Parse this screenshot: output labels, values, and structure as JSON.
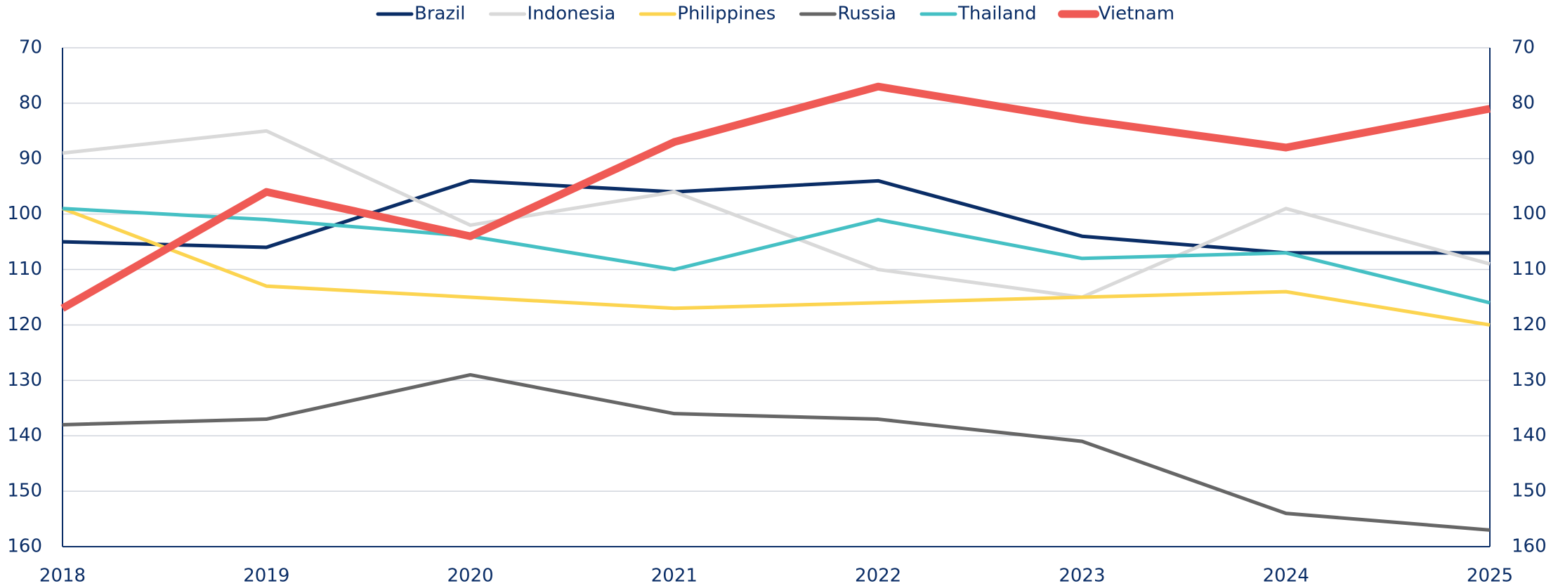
{
  "chart_data": {
    "type": "line",
    "categories": [
      "2018",
      "2019",
      "2020",
      "2021",
      "2022",
      "2023",
      "2024",
      "2025"
    ],
    "series": [
      {
        "name": "Brazil",
        "color": "#0a2d66",
        "values": [
          105,
          106,
          94,
          96,
          94,
          104,
          107,
          107
        ]
      },
      {
        "name": "Indonesia",
        "color": "#d9d9d9",
        "values": [
          89,
          85,
          102,
          96,
          110,
          115,
          99,
          109
        ]
      },
      {
        "name": "Philippines",
        "color": "#fcd450",
        "values": [
          99,
          113,
          115,
          117,
          116,
          115,
          114,
          120
        ]
      },
      {
        "name": "Russia",
        "color": "#666666",
        "values": [
          138,
          137,
          129,
          136,
          137,
          141,
          154,
          157
        ]
      },
      {
        "name": "Thailand",
        "color": "#45c0c4",
        "values": [
          99,
          101,
          104,
          110,
          101,
          108,
          107,
          116
        ]
      },
      {
        "name": "Vietnam",
        "color": "#ef5a55",
        "values": [
          117,
          96,
          104,
          87,
          77,
          83,
          88,
          81
        ]
      }
    ],
    "ylim": [
      70,
      160
    ],
    "yticks": [
      70,
      80,
      90,
      100,
      110,
      120,
      130,
      140,
      150,
      160
    ],
    "y2lim": [
      70,
      160
    ],
    "y2ticks": [
      70,
      80,
      90,
      100,
      110,
      120,
      130,
      140,
      150,
      160
    ],
    "y_inverted": true,
    "grid": true,
    "legend": "top",
    "highlight": "Vietnam"
  }
}
